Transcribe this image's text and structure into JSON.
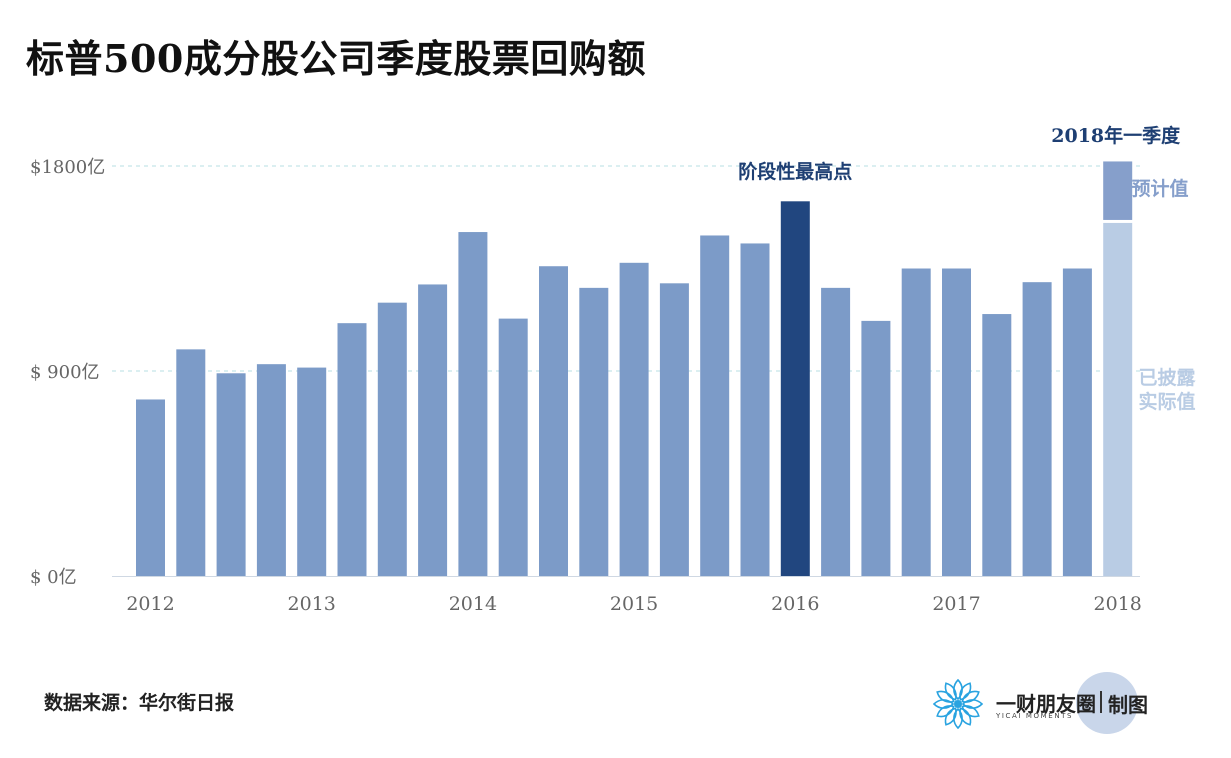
{
  "title": "标普500成分股公司季度股票回购额",
  "source": "数据来源：华尔街日报",
  "brand": {
    "name": "一财朋友圈",
    "subtitle": "YICAI MOMENTS",
    "made_by": "制图"
  },
  "colors": {
    "bar": "#7c9bc8",
    "highlight": "#21467f",
    "forecast": "#869fcb",
    "actual": "#b9cce4",
    "grid": "#b7dfe3",
    "axis_text": "#666666",
    "annotation": "#1e3f73"
  },
  "chart_data": {
    "type": "bar",
    "y_tick_labels": [
      "$ 0亿",
      "$ 900亿",
      "$1800亿"
    ],
    "y_ticks": [
      0,
      900,
      1800
    ],
    "ylim": [
      0,
      1800
    ],
    "x_tick_labels": [
      "2012",
      "2013",
      "2014",
      "2015",
      "2016",
      "2017",
      "2018"
    ],
    "values": [
      775,
      995,
      890,
      930,
      915,
      1110,
      1200,
      1280,
      1510,
      1130,
      1360,
      1265,
      1375,
      1285,
      1495,
      1460,
      1645,
      1265,
      1120,
      1350,
      1350,
      1150,
      1290,
      1350,
      1550
    ],
    "highlight_index": 16,
    "highlight_label": "阶段性最高点",
    "last_quarter": {
      "label": "2018年一季度",
      "actual": 1550,
      "forecast_total": 1820,
      "actual_label_lines": [
        "已披露",
        "实际值"
      ],
      "forecast_label": "预计值"
    },
    "grid": true
  }
}
